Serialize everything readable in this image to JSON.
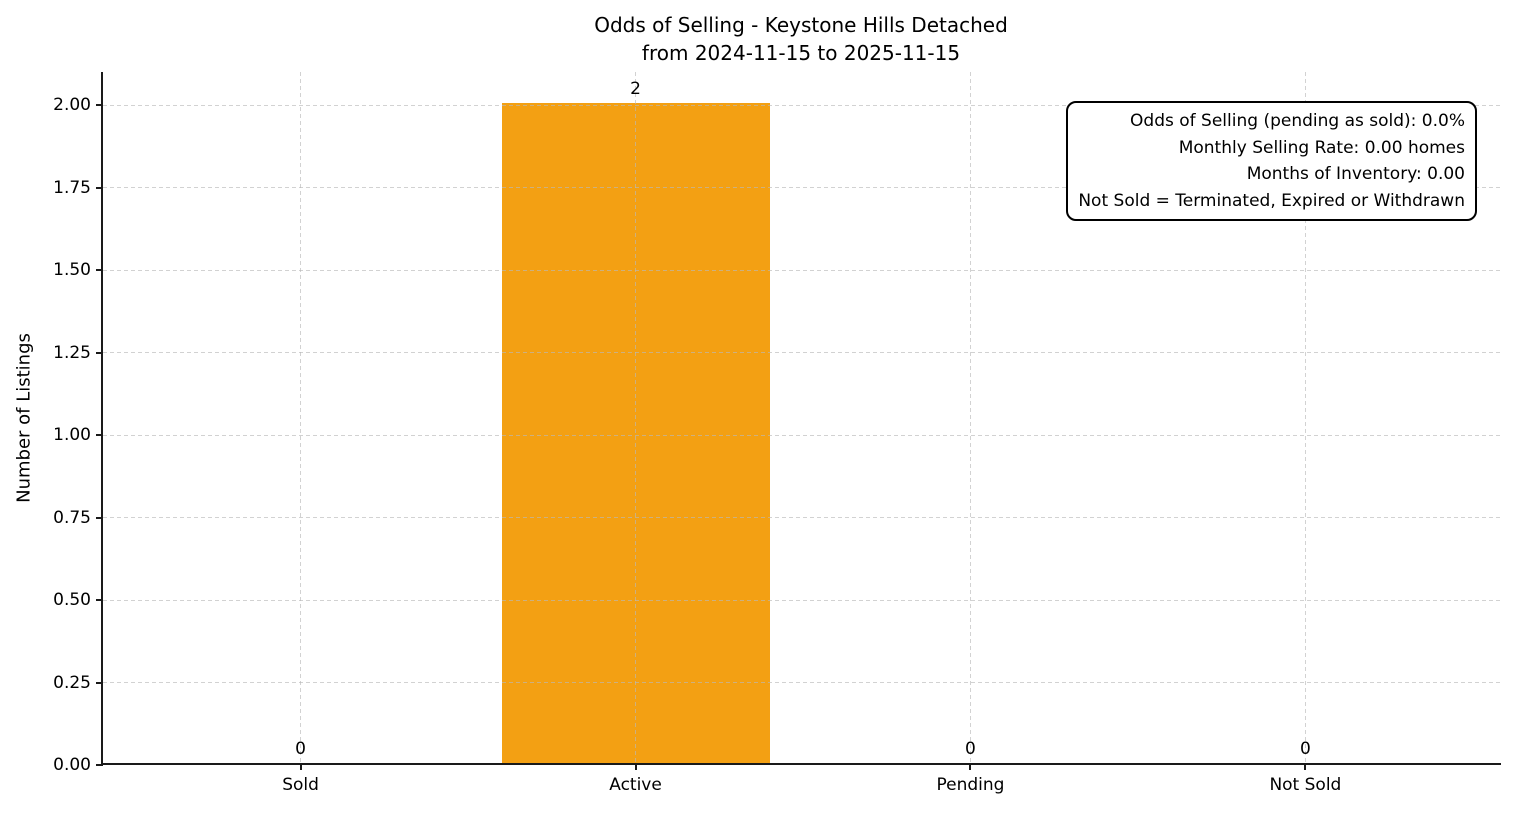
{
  "title": {
    "line1": "Odds of Selling - Keystone Hills Detached",
    "line2": "from 2024-11-15 to 2025-11-15"
  },
  "chart_data": {
    "type": "bar",
    "title": "Odds of Selling - Keystone Hills Detached\nfrom 2024-11-15 to 2025-11-15",
    "categories": [
      "Sold",
      "Active",
      "Pending",
      "Not Sold"
    ],
    "values": [
      0,
      2,
      0,
      0
    ],
    "bar_labels": [
      "0",
      "2",
      "0",
      "0"
    ],
    "xlabel": "",
    "ylabel": "Number of Listings",
    "ylim": [
      0,
      2.1
    ],
    "yticks": [
      0.0,
      0.25,
      0.5,
      0.75,
      1.0,
      1.25,
      1.5,
      1.75,
      2.0
    ],
    "ytick_labels": [
      "0.00",
      "0.25",
      "0.50",
      "0.75",
      "1.00",
      "1.25",
      "1.50",
      "1.75",
      "2.00"
    ],
    "grid": true,
    "grid_style": "dashed",
    "legend_position": "none",
    "colors": {
      "bar": "#F3A013",
      "grid": "#D6D6D6",
      "axis": "#1A1A1A",
      "text": "#000000",
      "background": "#FFFFFF"
    },
    "annotation_box": {
      "position": "top-right",
      "lines": [
        "Odds of Selling (pending as sold): 0.0%",
        "Monthly Selling Rate: 0.00 homes",
        "Months of Inventory: 0.00",
        "Not Sold = Terminated, Expired or Withdrawn"
      ]
    }
  }
}
